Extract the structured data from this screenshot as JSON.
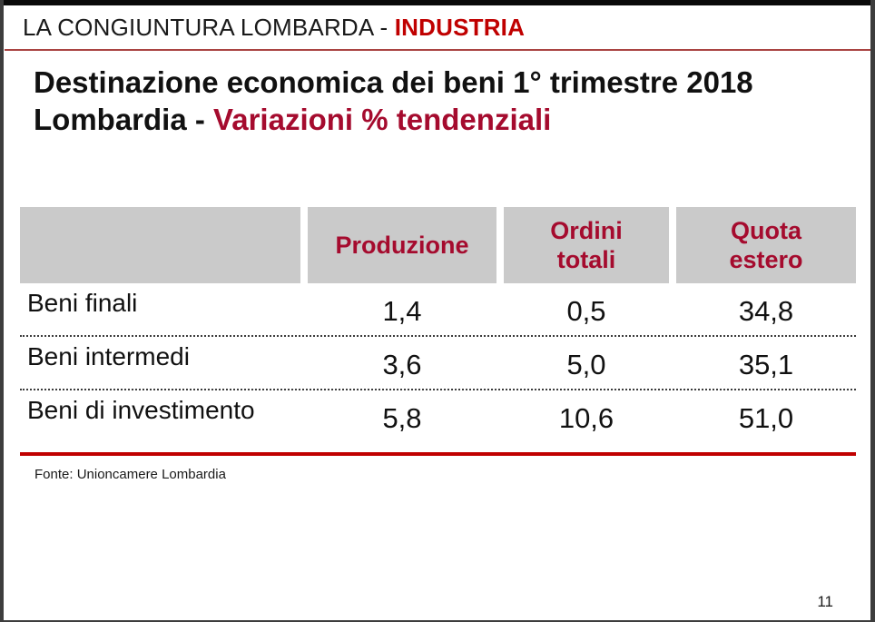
{
  "header": {
    "prefix": "LA CONGIUNTURA LOMBARDA - ",
    "highlight": "INDUSTRIA"
  },
  "title": {
    "line1": "Destinazione economica dei beni 1° trimestre 2018",
    "line2_prefix": "Lombardia - ",
    "line2_highlight": "Variazioni % tendenziali"
  },
  "table": {
    "columns": [
      "Produzione",
      "Ordini totali",
      "Quota estero"
    ],
    "rows": [
      {
        "label": "Beni finali",
        "values": [
          "1,4",
          "0,5",
          "34,8"
        ]
      },
      {
        "label": "Beni intermedi",
        "values": [
          "3,6",
          "5,0",
          "35,1"
        ]
      },
      {
        "label": "Beni di investimento",
        "values": [
          "5,8",
          "10,6",
          "51,0"
        ]
      }
    ]
  },
  "footer": {
    "source": "Fonte: Unioncamere Lombardia",
    "page_number": "11"
  },
  "colors": {
    "accent_crimson": "#a50b2e",
    "bright_red": "#c00000",
    "divider_red": "#a94442",
    "header_cell_gray": "#cacaca",
    "frame_dark": "#3d3d3d"
  }
}
